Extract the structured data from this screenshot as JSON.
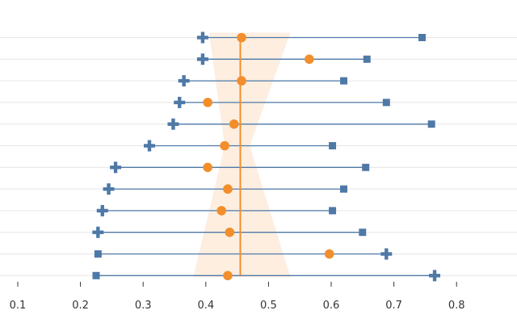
{
  "chart_data": {
    "type": "scatter",
    "subtype": "range-dot-plot",
    "title": "",
    "xlabel": "",
    "ylabel": "",
    "xlim": [
      0.1,
      0.84
    ],
    "x_ticks": [
      0.1,
      0.2,
      0.3,
      0.4,
      0.5,
      0.6,
      0.7,
      0.8
    ],
    "x_tick_labels": [
      "0.1",
      "0.2",
      "0.3",
      "0.4",
      "0.5",
      "0.6",
      "0.7",
      "0.8"
    ],
    "grid": "horizontal",
    "legend": "none",
    "reference_line": {
      "value": 0.455,
      "color": "#f28e2b"
    },
    "band": {
      "color": "#fdeee0",
      "rows": [
        {
          "row": 1,
          "low": 0.405,
          "high": 0.535
        },
        {
          "row": 12,
          "low": 0.38,
          "high": 0.535
        }
      ],
      "narrowest": {
        "row": 6,
        "low": 0.43,
        "high": 0.47
      }
    },
    "series": [
      {
        "name": "cross",
        "marker": "plus",
        "color": "#4e79a7",
        "values": [
          0.395,
          0.395,
          0.365,
          0.358,
          0.348,
          0.31,
          0.256,
          0.245,
          0.235,
          0.228,
          0.688,
          0.765
        ]
      },
      {
        "name": "square",
        "marker": "square",
        "color": "#4e79a7",
        "values": [
          0.745,
          0.657,
          0.62,
          0.688,
          0.76,
          0.602,
          0.655,
          0.62,
          0.602,
          0.65,
          0.228,
          0.225
        ]
      },
      {
        "name": "circle",
        "marker": "circle",
        "color": "#f28e2b",
        "values": [
          0.457,
          0.565,
          0.457,
          0.403,
          0.445,
          0.43,
          0.403,
          0.435,
          0.425,
          0.438,
          0.597,
          0.435
        ]
      }
    ]
  }
}
